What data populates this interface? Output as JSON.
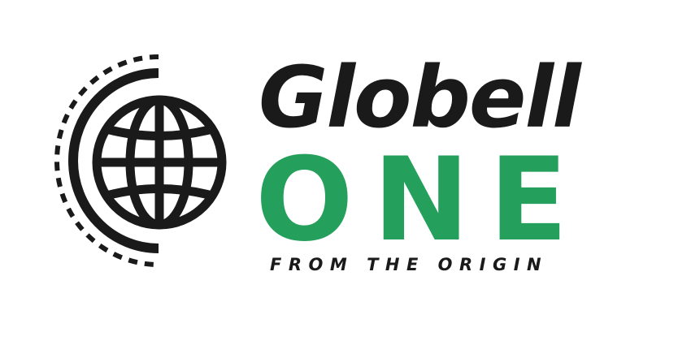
{
  "logo": {
    "brand_name": "Globell",
    "product_name": "ONE",
    "tagline": "FROM THE ORIGIN",
    "icon": "globe-icon",
    "colors": {
      "dark": "#1a1a1a",
      "accent_green": "#24a05c",
      "background": "#ffffff"
    }
  }
}
